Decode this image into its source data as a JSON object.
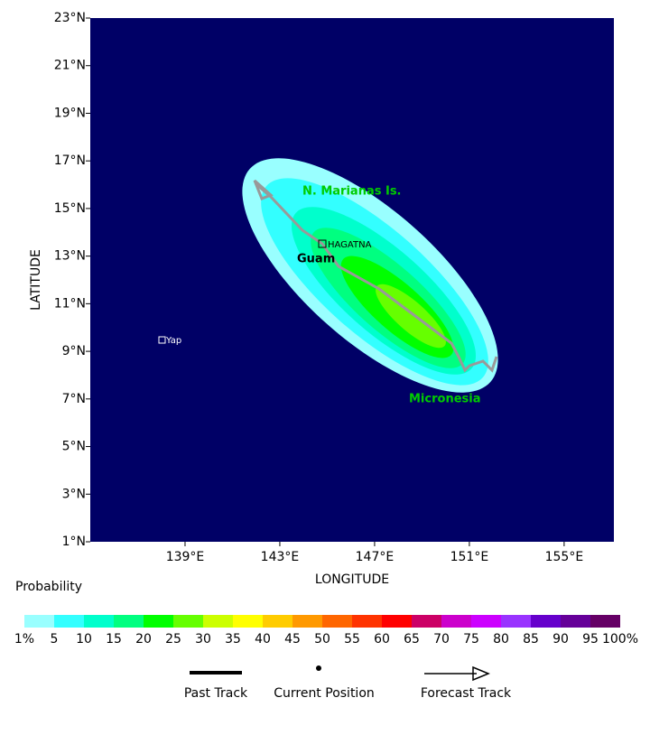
{
  "map": {
    "lon_extent": [
      135,
      157.1
    ],
    "lat_extent": [
      1,
      23
    ],
    "lat_ticks": [
      {
        "value": 1,
        "label": "1°N"
      },
      {
        "value": 3,
        "label": "3°N"
      },
      {
        "value": 5,
        "label": "5°N"
      },
      {
        "value": 7,
        "label": "7°N"
      },
      {
        "value": 9,
        "label": "9°N"
      },
      {
        "value": 11,
        "label": "11°N"
      },
      {
        "value": 13,
        "label": "13°N"
      },
      {
        "value": 15,
        "label": "15°N"
      },
      {
        "value": 17,
        "label": "17°N"
      },
      {
        "value": 19,
        "label": "19°N"
      },
      {
        "value": 21,
        "label": "21°N"
      },
      {
        "value": 23,
        "label": "23°N"
      }
    ],
    "lon_ticks": [
      {
        "value": 139,
        "label": "139°E"
      },
      {
        "value": 143,
        "label": "143°E"
      },
      {
        "value": 147,
        "label": "147°E"
      },
      {
        "value": 151,
        "label": "151°E"
      },
      {
        "value": 155,
        "label": "155°E"
      }
    ],
    "x_axis_label": "LONGITUDE",
    "y_axis_label": "LATITUDE",
    "places": {
      "marianas": "N. Marianas Is.",
      "hagatna": "HAGATNA",
      "guam": "Guam",
      "yap": "Yap",
      "micronesia": "Micronesia"
    }
  },
  "colorbar": {
    "title": "Probability",
    "colors": [
      "#99ffff",
      "#33ffff",
      "#00ffcc",
      "#00ff80",
      "#00ff00",
      "#66ff00",
      "#ccff00",
      "#ffff00",
      "#ffcc00",
      "#ff9900",
      "#ff6600",
      "#ff3300",
      "#ff0000",
      "#cc0066",
      "#cc00cc",
      "#cc00ff",
      "#9933ff",
      "#6600cc",
      "#660099",
      "#660066"
    ],
    "labels": [
      "1%",
      "5",
      "10",
      "15",
      "20",
      "25",
      "30",
      "35",
      "40",
      "45",
      "50",
      "55",
      "60",
      "65",
      "70",
      "75",
      "80",
      "85",
      "90",
      "95",
      "100%"
    ]
  },
  "legend": {
    "past": "Past Track",
    "current": "Current Position",
    "forecast": "Forecast Track"
  }
}
